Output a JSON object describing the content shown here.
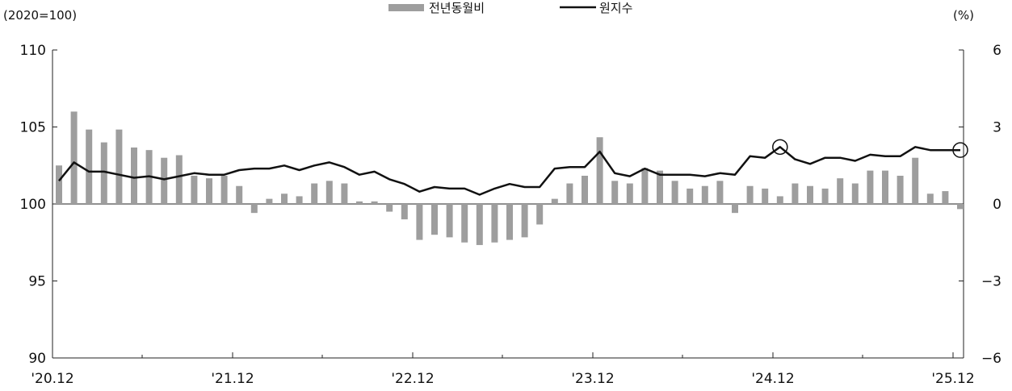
{
  "chart_data": {
    "type": "bar+line",
    "left_unit": "(2020=100)",
    "right_unit": "(%)",
    "legend": {
      "bar_label": "전년동월비",
      "line_label": "원지수"
    },
    "colors": {
      "bar": "#9e9e9e",
      "line": "#111111"
    },
    "x_tick_labels": [
      "'20.12",
      "'21.12",
      "'22.12",
      "'23.12",
      "'24.12",
      "'25.12"
    ],
    "y_left": {
      "min": 90,
      "max": 110,
      "ticks": [
        "110",
        "105",
        "100",
        "95",
        "90"
      ]
    },
    "y_right": {
      "min": -6,
      "max": 6,
      "ticks": [
        "6",
        "3",
        "0",
        "-3",
        "-6"
      ]
    },
    "series": [
      {
        "name": "전년동월비",
        "type": "bar",
        "axis": "right",
        "values": [
          1.5,
          3.6,
          2.9,
          2.4,
          2.9,
          2.2,
          2.1,
          1.8,
          1.9,
          1.1,
          1.0,
          1.1,
          0.7,
          -0.35,
          0.2,
          0.4,
          0.3,
          0.8,
          0.9,
          0.8,
          0.1,
          0.1,
          -0.3,
          -0.6,
          -1.4,
          -1.2,
          -1.3,
          -1.5,
          -1.6,
          -1.5,
          -1.4,
          -1.3,
          -0.8,
          0.2,
          0.8,
          1.1,
          2.6,
          0.9,
          0.8,
          1.4,
          1.3,
          0.9,
          0.6,
          0.7,
          0.9,
          -0.35,
          0.7,
          0.6,
          0.3,
          0.8,
          0.7,
          0.6,
          1.0,
          0.8,
          1.3,
          1.3,
          1.1,
          1.8,
          0.4,
          0.5,
          -0.2
        ]
      },
      {
        "name": "원지수",
        "type": "line",
        "axis": "left",
        "values": [
          101.5,
          102.7,
          102.1,
          102.1,
          101.9,
          101.7,
          101.8,
          101.6,
          101.8,
          102.0,
          101.9,
          101.9,
          102.2,
          102.3,
          102.3,
          102.5,
          102.2,
          102.5,
          102.7,
          102.4,
          101.9,
          102.1,
          101.6,
          101.3,
          100.8,
          101.1,
          101.0,
          101.0,
          100.6,
          101.0,
          101.3,
          101.1,
          101.1,
          102.3,
          102.4,
          102.4,
          103.4,
          102.0,
          101.8,
          102.3,
          101.9,
          101.9,
          101.9,
          101.8,
          102.0,
          101.9,
          103.1,
          103.0,
          103.7,
          102.9,
          102.6,
          103.0,
          103.0,
          102.8,
          103.2,
          103.1,
          103.1,
          103.7,
          103.5,
          103.5,
          103.5
        ]
      }
    ],
    "markers": [
      {
        "series": "원지수",
        "index": 48
      },
      {
        "series": "원지수",
        "index": 60
      }
    ]
  }
}
